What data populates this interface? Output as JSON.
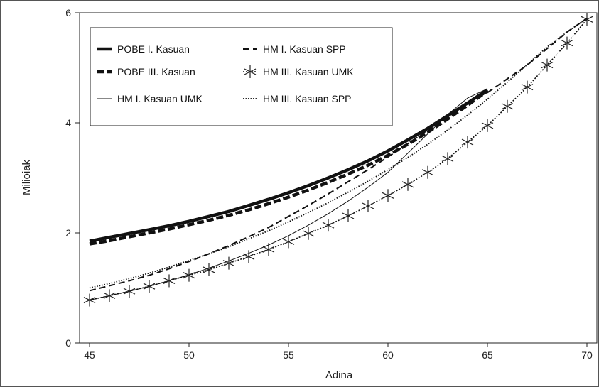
{
  "chart_data": {
    "type": "line",
    "title": "",
    "xlabel": "Adina",
    "ylabel": "Milioiak",
    "xlim": [
      44.5,
      70.5
    ],
    "ylim": [
      0,
      6
    ],
    "xticks": [
      45,
      50,
      55,
      60,
      65,
      70
    ],
    "yticks": [
      0,
      2,
      4,
      6
    ],
    "grid": false,
    "legend_position": "top-left",
    "series": [
      {
        "name": "POBE I. Kasuan",
        "style": "thick-solid",
        "color": "#111111",
        "x": [
          45,
          46,
          47,
          48,
          49,
          50,
          51,
          52,
          53,
          54,
          55,
          56,
          57,
          58,
          59,
          60,
          61,
          62,
          63,
          64,
          65
        ],
        "y": [
          1.85,
          1.92,
          1.99,
          2.06,
          2.13,
          2.21,
          2.3,
          2.39,
          2.5,
          2.61,
          2.73,
          2.86,
          3.0,
          3.15,
          3.31,
          3.49,
          3.69,
          3.9,
          4.13,
          4.36,
          4.6
        ]
      },
      {
        "name": "POBE III. Kasuan",
        "style": "thick-dashed",
        "color": "#111111",
        "x": [
          45,
          46,
          47,
          48,
          49,
          50,
          51,
          52,
          53,
          54,
          55,
          56,
          57,
          58,
          59,
          60,
          61,
          62,
          63,
          64,
          65
        ],
        "y": [
          1.8,
          1.86,
          1.93,
          2.0,
          2.07,
          2.15,
          2.23,
          2.32,
          2.42,
          2.53,
          2.65,
          2.78,
          2.92,
          3.07,
          3.23,
          3.41,
          3.61,
          3.83,
          4.07,
          4.32,
          4.58
        ]
      },
      {
        "name": "HM I. Kasuan UMK",
        "style": "thin-solid",
        "color": "#111111",
        "x": [
          45,
          46,
          47,
          48,
          49,
          50,
          51,
          52,
          53,
          54,
          55,
          56,
          57,
          58,
          59,
          60,
          61,
          62,
          63,
          64,
          65
        ],
        "y": [
          0.78,
          0.86,
          0.94,
          1.03,
          1.13,
          1.24,
          1.36,
          1.49,
          1.63,
          1.78,
          1.95,
          2.14,
          2.35,
          2.58,
          2.83,
          3.1,
          3.45,
          3.8,
          4.15,
          4.45,
          4.62
        ]
      },
      {
        "name": "HM I. Kasuan SPP",
        "style": "dashed",
        "color": "#111111",
        "x": [
          45,
          46,
          47,
          48,
          49,
          50,
          51,
          52,
          53,
          54,
          55,
          56,
          57,
          58,
          59,
          60,
          61,
          62,
          63,
          64,
          65,
          66,
          67,
          68,
          69,
          70
        ],
        "y": [
          0.95,
          1.04,
          1.13,
          1.23,
          1.35,
          1.48,
          1.62,
          1.77,
          1.93,
          2.1,
          2.3,
          2.5,
          2.71,
          2.93,
          3.15,
          3.38,
          3.62,
          3.87,
          4.12,
          4.38,
          4.55,
          4.8,
          5.05,
          5.35,
          5.65,
          5.9
        ]
      },
      {
        "name": "HM III. Kasuan UMK",
        "style": "star-marker",
        "color": "#111111",
        "x": [
          45,
          46,
          47,
          48,
          49,
          50,
          51,
          52,
          53,
          54,
          55,
          56,
          57,
          58,
          59,
          60,
          61,
          62,
          63,
          64,
          65,
          66,
          67,
          68,
          69,
          70
        ],
        "y": [
          0.78,
          0.86,
          0.94,
          1.03,
          1.13,
          1.23,
          1.33,
          1.45,
          1.57,
          1.7,
          1.84,
          1.99,
          2.14,
          2.31,
          2.49,
          2.68,
          2.88,
          3.1,
          3.35,
          3.65,
          3.95,
          4.3,
          4.65,
          5.05,
          5.45,
          5.88
        ]
      },
      {
        "name": "HM III. Kasuan SPP",
        "style": "dotted",
        "color": "#111111",
        "x": [
          45,
          46,
          47,
          48,
          49,
          50,
          51,
          52,
          53,
          54,
          55,
          56,
          57,
          58,
          59,
          60,
          61,
          62,
          63,
          64,
          65,
          66,
          67,
          68,
          69,
          70
        ],
        "y": [
          1.0,
          1.08,
          1.17,
          1.27,
          1.38,
          1.5,
          1.62,
          1.75,
          1.89,
          2.04,
          2.2,
          2.37,
          2.55,
          2.74,
          2.94,
          3.15,
          3.37,
          3.61,
          3.87,
          4.14,
          4.43,
          4.74,
          5.06,
          5.38,
          5.65,
          5.9
        ]
      }
    ]
  }
}
